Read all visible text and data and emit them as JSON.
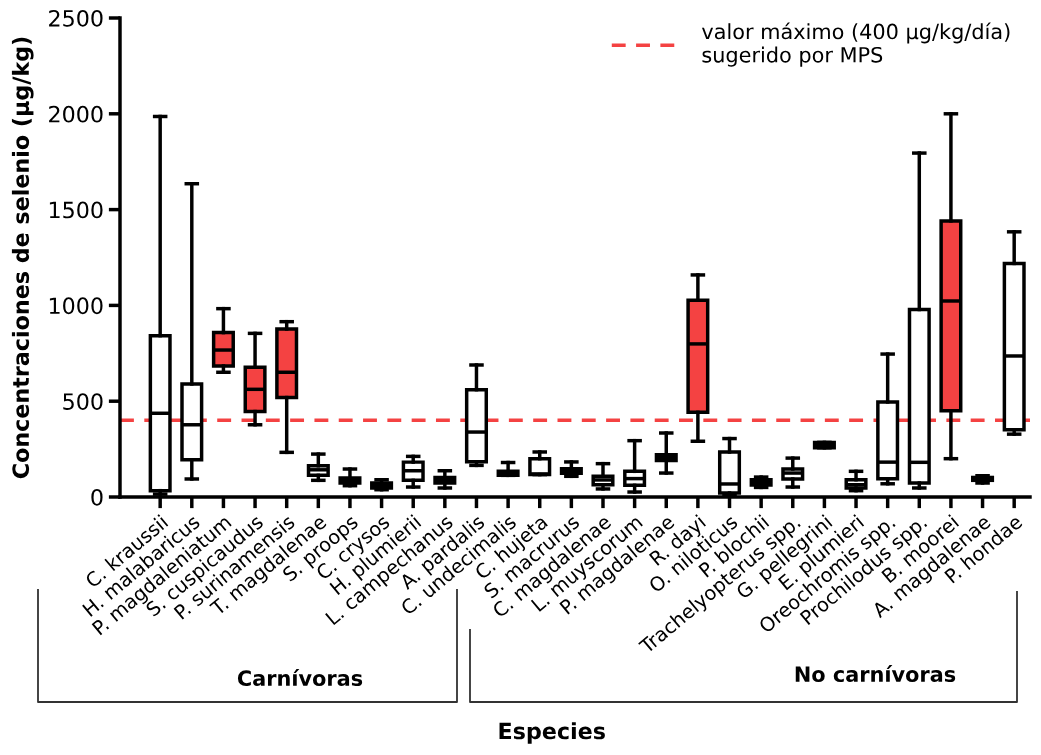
{
  "chart_data": {
    "type": "box",
    "xlabel": "Especies",
    "ylabel": "Concentraciones de selenio (μg/kg)",
    "categories": [
      "C. kraussii",
      "H. malabaricus",
      "P. magdaleniatum",
      "S. cuspicaudus",
      "P. surinamensis",
      "T. magdalenae",
      "S. proops",
      "C. crysos",
      "H. plumierii",
      "L. campechanus",
      "A. pardalis",
      "C. undecimalis",
      "C. hujeta",
      "S. macrurus",
      "C. magdalenae",
      "L. muyscorum",
      "P. magdalenae",
      "R. dayi",
      "O. niloticus",
      "P. blochii",
      "Trachelyopterus spp.",
      "G. pellegrini",
      "E. plumieri",
      "Oreochromis spp.",
      "Prochilodus spp.",
      "B. moorei",
      "A. magdalenae",
      "P. hondae"
    ],
    "boxes": [
      {
        "low": 15,
        "q1": 33,
        "median": 437,
        "q3": 842,
        "high": 1986
      },
      {
        "low": 94,
        "q1": 194,
        "median": 377,
        "q3": 590,
        "high": 1635
      },
      {
        "low": 651,
        "q1": 684,
        "median": 767,
        "q3": 858,
        "high": 983
      },
      {
        "low": 377,
        "q1": 446,
        "median": 562,
        "q3": 677,
        "high": 854
      },
      {
        "low": 233,
        "q1": 519,
        "median": 651,
        "q3": 877,
        "high": 915
      },
      {
        "low": 87,
        "q1": 113,
        "median": 142,
        "q3": 163,
        "high": 224
      },
      {
        "low": 59,
        "q1": 73,
        "median": 87,
        "q3": 99,
        "high": 146
      },
      {
        "low": 38,
        "q1": 47,
        "median": 61,
        "q3": 73,
        "high": 90
      },
      {
        "low": 52,
        "q1": 87,
        "median": 137,
        "q3": 182,
        "high": 212
      },
      {
        "low": 47,
        "q1": 73,
        "median": 87,
        "q3": 102,
        "high": 137
      },
      {
        "low": 165,
        "q1": 184,
        "median": 339,
        "q3": 560,
        "high": 689
      },
      {
        "low": 113,
        "q1": 113,
        "median": 125,
        "q3": 135,
        "high": 180
      },
      {
        "low": 117,
        "q1": 117,
        "median": 120,
        "q3": 200,
        "high": 235
      },
      {
        "low": 108,
        "q1": 124,
        "median": 136,
        "q3": 148,
        "high": 183
      },
      {
        "low": 42,
        "q1": 64,
        "median": 89,
        "q3": 108,
        "high": 174
      },
      {
        "low": 26,
        "q1": 61,
        "median": 96,
        "q3": 134,
        "high": 294
      },
      {
        "low": 125,
        "q1": 190,
        "median": 207,
        "q3": 221,
        "high": 334
      },
      {
        "low": 291,
        "q1": 442,
        "median": 799,
        "q3": 1027,
        "high": 1159
      },
      {
        "low": 12,
        "q1": 21,
        "median": 68,
        "q3": 235,
        "high": 305
      },
      {
        "low": 50,
        "q1": 63,
        "median": 77,
        "q3": 90,
        "high": 104
      },
      {
        "low": 52,
        "q1": 94,
        "median": 125,
        "q3": 146,
        "high": 203
      },
      {
        "low": 257,
        "q1": 257,
        "median": 271,
        "q3": 285,
        "high": 285
      },
      {
        "low": 33,
        "q1": 47,
        "median": 64,
        "q3": 90,
        "high": 134
      },
      {
        "low": 69,
        "q1": 95,
        "median": 182,
        "q3": 496,
        "high": 746
      },
      {
        "low": 47,
        "q1": 73,
        "median": 181,
        "q3": 979,
        "high": 1795
      },
      {
        "low": 200,
        "q1": 450,
        "median": 1023,
        "q3": 1441,
        "high": 2000
      },
      {
        "low": 73,
        "q1": 87,
        "median": 95,
        "q3": 102,
        "high": 111
      },
      {
        "low": 328,
        "q1": 351,
        "median": 736,
        "q3": 1219,
        "high": 1384
      }
    ],
    "colors": [
      "#ffffff",
      "#ffffff",
      "#f44242",
      "#f44242",
      "#f44242",
      "#ffffff",
      "#ffffff",
      "#ffffff",
      "#ffffff",
      "#ffffff",
      "#ffffff",
      "#ffffff",
      "#ffffff",
      "#ffffff",
      "#ffffff",
      "#ffffff",
      "#ffffff",
      "#f44242",
      "#ffffff",
      "#ffffff",
      "#ffffff",
      "#ffffff",
      "#ffffff",
      "#ffffff",
      "#ffffff",
      "#f44242",
      "#ffffff",
      "#ffffff"
    ],
    "ylim": [
      0,
      2500
    ],
    "yticks": [
      0,
      500,
      1000,
      1500,
      2000,
      2500
    ],
    "ref_lines": [
      {
        "axis": "y",
        "value": 400,
        "label": "valor máximo (400 μg/kg/día)\nsugerido por MPS",
        "color": "#f44242",
        "line_style": "dashed"
      }
    ],
    "annotations": [
      "Carnívoras",
      "No carnívoras"
    ],
    "legend": "top right",
    "grid": false
  }
}
